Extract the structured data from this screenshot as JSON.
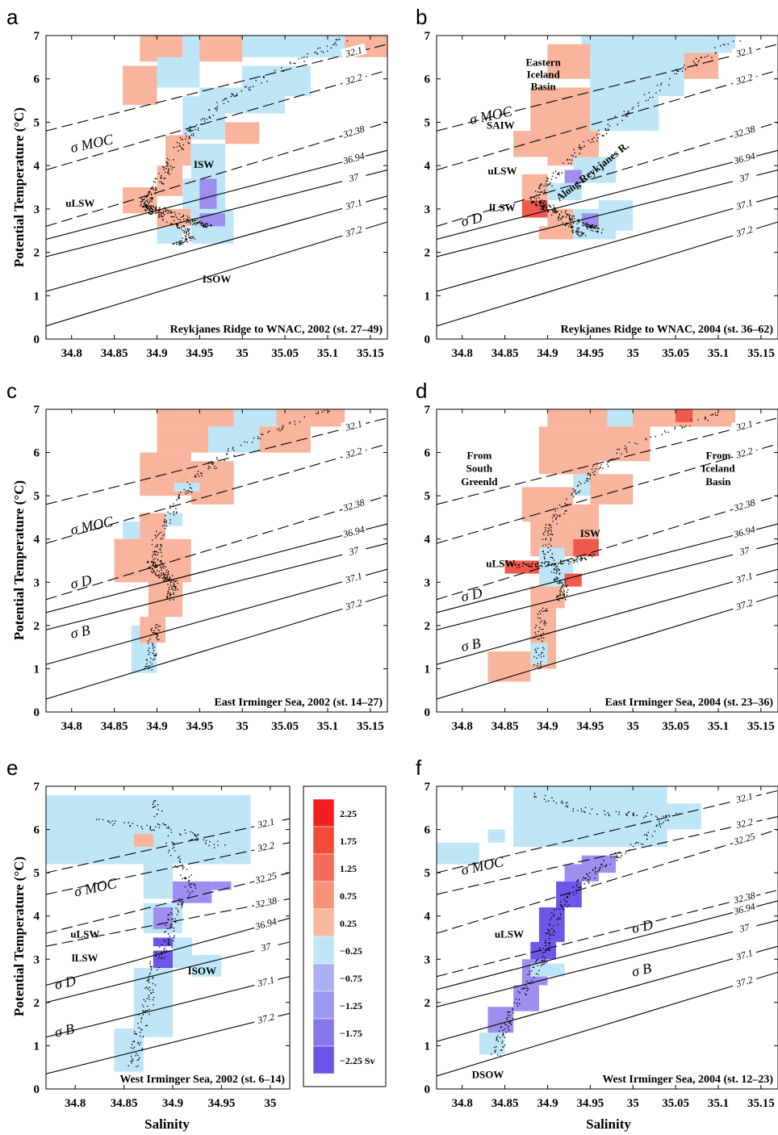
{
  "colors": {
    "blue": "#bfe6f7",
    "salmon": "#f8b49c",
    "strong_red": "#f05a4c",
    "purple": "#9d8ef0",
    "dark_purple": "#6f56e8",
    "dot": "#000000"
  },
  "axis_titles": {
    "y": "Potential Temperature (°C)",
    "x": "Salinity"
  },
  "colorbar": {
    "labels": [
      "2.25",
      "1.75",
      "1.25",
      "0.75",
      "0.25",
      "−0.25",
      "−0.75",
      "−1.25",
      "−1.75",
      "−2.25 Sv"
    ]
  },
  "chart_data": [
    {
      "id": "a",
      "type": "heatmap",
      "panel_label": "a",
      "title": "Reykjanes Ridge to WNAC, 2002 (st. 27–49)",
      "xlim": [
        34.77,
        35.17
      ],
      "ylim": [
        0,
        7
      ],
      "xticks": [
        "34.8",
        "34.85",
        "34.9",
        "34.95",
        "35",
        "35.05",
        "35.1",
        "35.15"
      ],
      "yticks": [
        "0",
        "1",
        "2",
        "3",
        "4",
        "5",
        "6",
        "7"
      ],
      "ylabel": "Potential Temperature (°C)",
      "xlabel": "",
      "contours": [
        "32.1",
        "32.2",
        "32.38",
        "36.94",
        "37",
        "37.1",
        "37.2"
      ],
      "sigma_labels": [
        "σ MOC"
      ],
      "annotations": [
        "ISW",
        "uLSW",
        "ISOW"
      ]
    },
    {
      "id": "b",
      "type": "heatmap",
      "panel_label": "b",
      "title": "Reykjanes Ridge to WNAC, 2004 (st. 36–62)",
      "xlim": [
        34.77,
        35.17
      ],
      "ylim": [
        0,
        7
      ],
      "xticks": [
        "34.8",
        "34.85",
        "34.9",
        "34.95",
        "35",
        "35.05",
        "35.1",
        "35.15"
      ],
      "yticks": [
        "0",
        "1",
        "2",
        "3",
        "4",
        "5",
        "6",
        "7"
      ],
      "ylabel": "",
      "xlabel": "",
      "contours": [
        "32.1",
        "32.2",
        "32.38",
        "36.94",
        "37",
        "37.1",
        "37.2"
      ],
      "sigma_labels": [
        "σ MOC",
        "σ D"
      ],
      "annotations": [
        "Eastern",
        "Iceland",
        "Basin",
        "SAIW",
        "uLSW",
        "lLSW",
        "Along Reykjanes R."
      ]
    },
    {
      "id": "c",
      "type": "heatmap",
      "panel_label": "c",
      "title": "East Irminger Sea, 2002 (st. 14–27)",
      "xlim": [
        34.77,
        35.17
      ],
      "ylim": [
        0,
        7
      ],
      "xticks": [
        "34.8",
        "34.85",
        "34.9",
        "34.95",
        "35",
        "35.05",
        "35.1",
        "35.15"
      ],
      "yticks": [
        "0",
        "1",
        "2",
        "3",
        "4",
        "5",
        "6",
        "7"
      ],
      "ylabel": "Potential Temperature (°C)",
      "xlabel": "",
      "contours": [
        "32.1",
        "32.2",
        "32.38",
        "36.94",
        "37",
        "37.1",
        "37.2"
      ],
      "sigma_labels": [
        "σ MOC",
        "σ D",
        "σ B"
      ],
      "annotations": []
    },
    {
      "id": "d",
      "type": "heatmap",
      "panel_label": "d",
      "title": "East Irminger Sea, 2004 (st. 23–36)",
      "xlim": [
        34.77,
        35.17
      ],
      "ylim": [
        0,
        7
      ],
      "xticks": [
        "34.8",
        "34.85",
        "34.9",
        "34.95",
        "35",
        "35.05",
        "35.1",
        "35.15"
      ],
      "yticks": [
        "0",
        "1",
        "2",
        "3",
        "4",
        "5",
        "6",
        "7"
      ],
      "ylabel": "",
      "xlabel": "",
      "contours": [
        "32.1",
        "32.2",
        "32.38",
        "36.94",
        "37",
        "37.1",
        "37.2"
      ],
      "sigma_labels": [
        "σ D",
        "σ B"
      ],
      "annotations": [
        "From",
        "South",
        "Greenld",
        "From",
        "Iceland",
        "Basin",
        "ISW",
        "uLSW"
      ]
    },
    {
      "id": "e",
      "type": "heatmap",
      "panel_label": "e",
      "title": "West Irminger Sea, 2002 (st. 6–14)",
      "xlim": [
        34.77,
        35.02
      ],
      "ylim": [
        0,
        7
      ],
      "xticks": [
        "34.8",
        "34.85",
        "34.9",
        "34.95",
        "35"
      ],
      "yticks": [
        "0",
        "1",
        "2",
        "3",
        "4",
        "5",
        "6",
        "7"
      ],
      "ylabel": "Potential Temperature (°C)",
      "xlabel": "Salinity",
      "contours": [
        "32.1",
        "32.2",
        "32.25",
        "32.38",
        "36.94",
        "37",
        "37.1",
        "37.2"
      ],
      "sigma_labels": [
        "σ MOC",
        "σ D",
        "σ B"
      ],
      "annotations": [
        "uLSW",
        "lLSW",
        "ISOW"
      ]
    },
    {
      "id": "f",
      "type": "heatmap",
      "panel_label": "f",
      "title": "West Irminger Sea, 2004 (st. 12–23)",
      "xlim": [
        34.77,
        35.17
      ],
      "ylim": [
        0,
        7
      ],
      "xticks": [
        "34.8",
        "34.85",
        "34.9",
        "34.95",
        "35",
        "35.05",
        "35.1",
        "35.15"
      ],
      "yticks": [
        "0",
        "1",
        "2",
        "3",
        "4",
        "5",
        "6",
        "7"
      ],
      "ylabel": "",
      "xlabel": "Salinity",
      "contours": [
        "32.1",
        "32.2",
        "32.25",
        "32.38",
        "36.94",
        "37",
        "37.1",
        "37.2"
      ],
      "sigma_labels": [
        "σ MOC",
        "σ D",
        "σ B"
      ],
      "annotations": [
        "uLSW",
        "DSOW"
      ]
    }
  ]
}
